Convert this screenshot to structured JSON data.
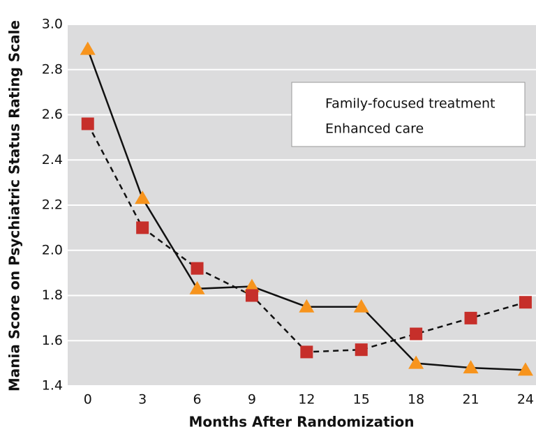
{
  "chart_data": {
    "type": "line",
    "x_label": "Months After Randomization",
    "y_label": "Mania Score on Psychiatric Status Rating Scale",
    "x": [
      0,
      3,
      6,
      9,
      12,
      15,
      18,
      21,
      24
    ],
    "series": [
      {
        "name": "Family-focused treatment",
        "color": "#f7941d",
        "marker": "triangle",
        "line_style": "solid",
        "values": [
          2.89,
          2.23,
          1.83,
          1.84,
          1.75,
          1.75,
          1.5,
          1.48,
          1.47
        ]
      },
      {
        "name": "Enhanced care",
        "color": "#c62f2a",
        "marker": "square",
        "line_style": "dashed",
        "values": [
          2.56,
          2.1,
          1.92,
          1.8,
          1.55,
          1.56,
          1.63,
          1.7,
          1.77
        ]
      }
    ],
    "xlim": [
      -1.1,
      24.5
    ],
    "xticks": [
      0,
      3,
      6,
      9,
      12,
      15,
      18,
      21,
      24
    ],
    "ylim": [
      1.4,
      3.0
    ],
    "yticks": [
      1.4,
      1.6,
      1.8,
      {
        "value": 2,
        "label": "2.0"
      },
      2.2,
      2.4,
      2.6,
      2.8,
      {
        "value": 3,
        "label": "3.0"
      }
    ],
    "grid": true,
    "legend": "upper right"
  }
}
